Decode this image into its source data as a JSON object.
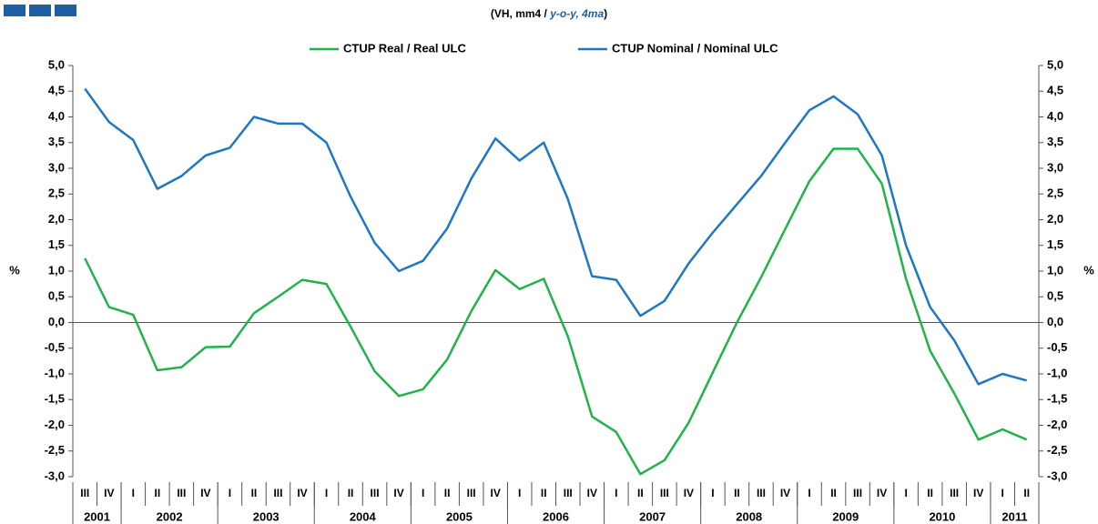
{
  "chart_data": {
    "type": "line",
    "subtitle": [
      "(VH, mm4 / ",
      "y-o-y, 4ma",
      ")"
    ],
    "y_label": "%",
    "y2_label": "%",
    "categories": [
      "III",
      "IV",
      "I",
      "II",
      "III",
      "IV",
      "I",
      "II",
      "III",
      "IV",
      "I",
      "II",
      "III",
      "IV",
      "I",
      "II",
      "III",
      "IV",
      "I",
      "II",
      "III",
      "IV",
      "I",
      "II",
      "III",
      "IV",
      "I",
      "II",
      "III",
      "IV",
      "I",
      "II",
      "III",
      "IV",
      "I",
      "II",
      "III",
      "IV",
      "I",
      "II"
    ],
    "years": [
      "2001",
      "2002",
      "2003",
      "2004",
      "2005",
      "2006",
      "2007",
      "2008",
      "2009",
      "2010",
      "2011"
    ],
    "series": [
      {
        "name": "CTUP Real / Real ULC",
        "color": "#22b24c",
        "values": [
          1.25,
          0.3,
          0.15,
          -0.93,
          -0.87,
          -0.48,
          -0.47,
          0.18,
          0.5,
          0.83,
          0.75,
          -0.08,
          -0.95,
          -1.43,
          -1.3,
          -0.72,
          0.22,
          1.02,
          0.65,
          0.85,
          -0.27,
          -1.83,
          -2.13,
          -2.95,
          -2.68,
          -1.95,
          -0.97,
          0.0,
          0.88,
          1.82,
          2.75,
          3.38,
          3.38,
          2.7,
          0.85,
          -0.55,
          -1.38,
          -2.28,
          -2.08,
          -2.28
        ]
      },
      {
        "name": "CTUP Nominal / Nominal ULC",
        "color": "#1f77c4",
        "values": [
          4.55,
          3.9,
          3.55,
          2.6,
          2.85,
          3.25,
          3.4,
          4.0,
          3.87,
          3.87,
          3.5,
          2.45,
          1.55,
          1.0,
          1.2,
          1.83,
          2.8,
          3.58,
          3.15,
          3.5,
          2.4,
          0.9,
          0.83,
          0.13,
          0.42,
          1.15,
          1.75,
          2.3,
          2.85,
          3.5,
          4.13,
          4.4,
          4.05,
          3.25,
          1.5,
          0.3,
          -0.35,
          -1.2,
          -1.0,
          -1.13
        ]
      }
    ],
    "ylim": [
      -3.0,
      5.0
    ],
    "yticks": [
      {
        "value": -3.0,
        "label": "-3,0"
      },
      {
        "value": -2.5,
        "label": "-2,5"
      },
      {
        "value": -2.0,
        "label": "-2,0"
      },
      {
        "value": -1.5,
        "label": "-1,5"
      },
      {
        "value": -1.0,
        "label": "-1,0"
      },
      {
        "value": -0.5,
        "label": "-0,5"
      },
      {
        "value": 0.0,
        "label": "0,0"
      },
      {
        "value": 0.5,
        "label": "0,5"
      },
      {
        "value": 1.0,
        "label": "1,0"
      },
      {
        "value": 1.5,
        "label": "1,5"
      },
      {
        "value": 2.0,
        "label": "2,0"
      },
      {
        "value": 2.5,
        "label": "2,5"
      },
      {
        "value": 3.0,
        "label": "3,0"
      },
      {
        "value": 3.5,
        "label": "3,5"
      },
      {
        "value": 4.0,
        "label": "4,0"
      },
      {
        "value": 4.5,
        "label": "4,5"
      },
      {
        "value": 5.0,
        "label": "5,0"
      }
    ],
    "y2lim": [
      -3.0,
      5.0
    ],
    "y2ticks": [
      {
        "value": -3.0,
        "label": "-3,0"
      },
      {
        "value": -2.5,
        "label": "-2,5"
      },
      {
        "value": -2.0,
        "label": "-2,0"
      },
      {
        "value": -1.5,
        "label": "-1,5"
      },
      {
        "value": -1.0,
        "label": "-1,0"
      },
      {
        "value": -0.5,
        "label": "-0,5"
      },
      {
        "value": 0.0,
        "label": "0,0"
      },
      {
        "value": 0.5,
        "label": "0,5"
      },
      {
        "value": 1.0,
        "label": "1,0"
      },
      {
        "value": 1.5,
        "label": "1,5"
      },
      {
        "value": 2.0,
        "label": "2,0"
      },
      {
        "value": 2.5,
        "label": "2,5"
      },
      {
        "value": 3.0,
        "label": "3,0"
      },
      {
        "value": 3.5,
        "label": "3,5"
      },
      {
        "value": 4.0,
        "label": "4,0"
      },
      {
        "value": 4.5,
        "label": "4,5"
      },
      {
        "value": 5.0,
        "label": "5,0"
      }
    ],
    "grid": false
  }
}
